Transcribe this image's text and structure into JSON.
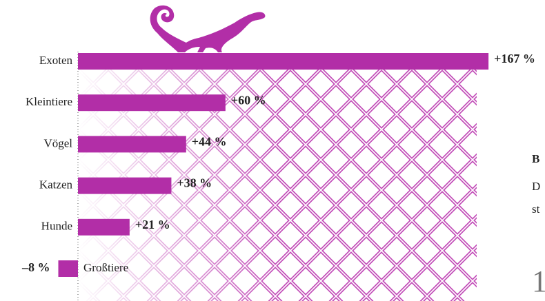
{
  "chart_data": {
    "type": "bar",
    "orientation": "horizontal",
    "categories": [
      "Exoten",
      "Kleintiere",
      "Vögel",
      "Katzen",
      "Hunde",
      "Großtiere"
    ],
    "values": [
      167,
      60,
      44,
      38,
      21,
      -8
    ],
    "value_labels": [
      "+167 %",
      "+60 %",
      "+44 %",
      "+38 %",
      "+21 %",
      "–8 %"
    ],
    "color": "#b22ea7",
    "xlim": [
      -30,
      170
    ],
    "annotations": [
      "B",
      "D",
      "st",
      "1"
    ]
  }
}
